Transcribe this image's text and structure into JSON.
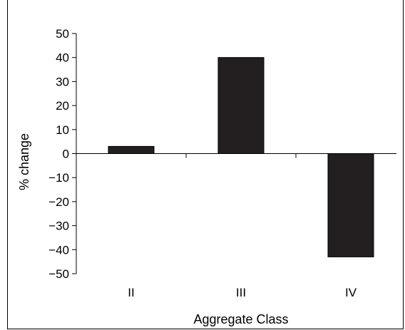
{
  "chart_data": {
    "type": "bar",
    "categories": [
      "II",
      "III",
      "IV"
    ],
    "values": [
      3,
      40,
      -43
    ],
    "title": "",
    "xlabel": "Aggregate Class",
    "ylabel": "% change",
    "ylim": [
      -50,
      50
    ],
    "yticks": [
      50,
      40,
      30,
      20,
      10,
      0,
      -10,
      -20,
      -30,
      -40,
      -50
    ],
    "ytick_labels": [
      "50",
      "40",
      "30",
      "20",
      "10",
      "0",
      "−10",
      "−20",
      "−30",
      "−40",
      "−50"
    ],
    "bar_color": "#231f20",
    "grid": false,
    "legend": "none"
  }
}
